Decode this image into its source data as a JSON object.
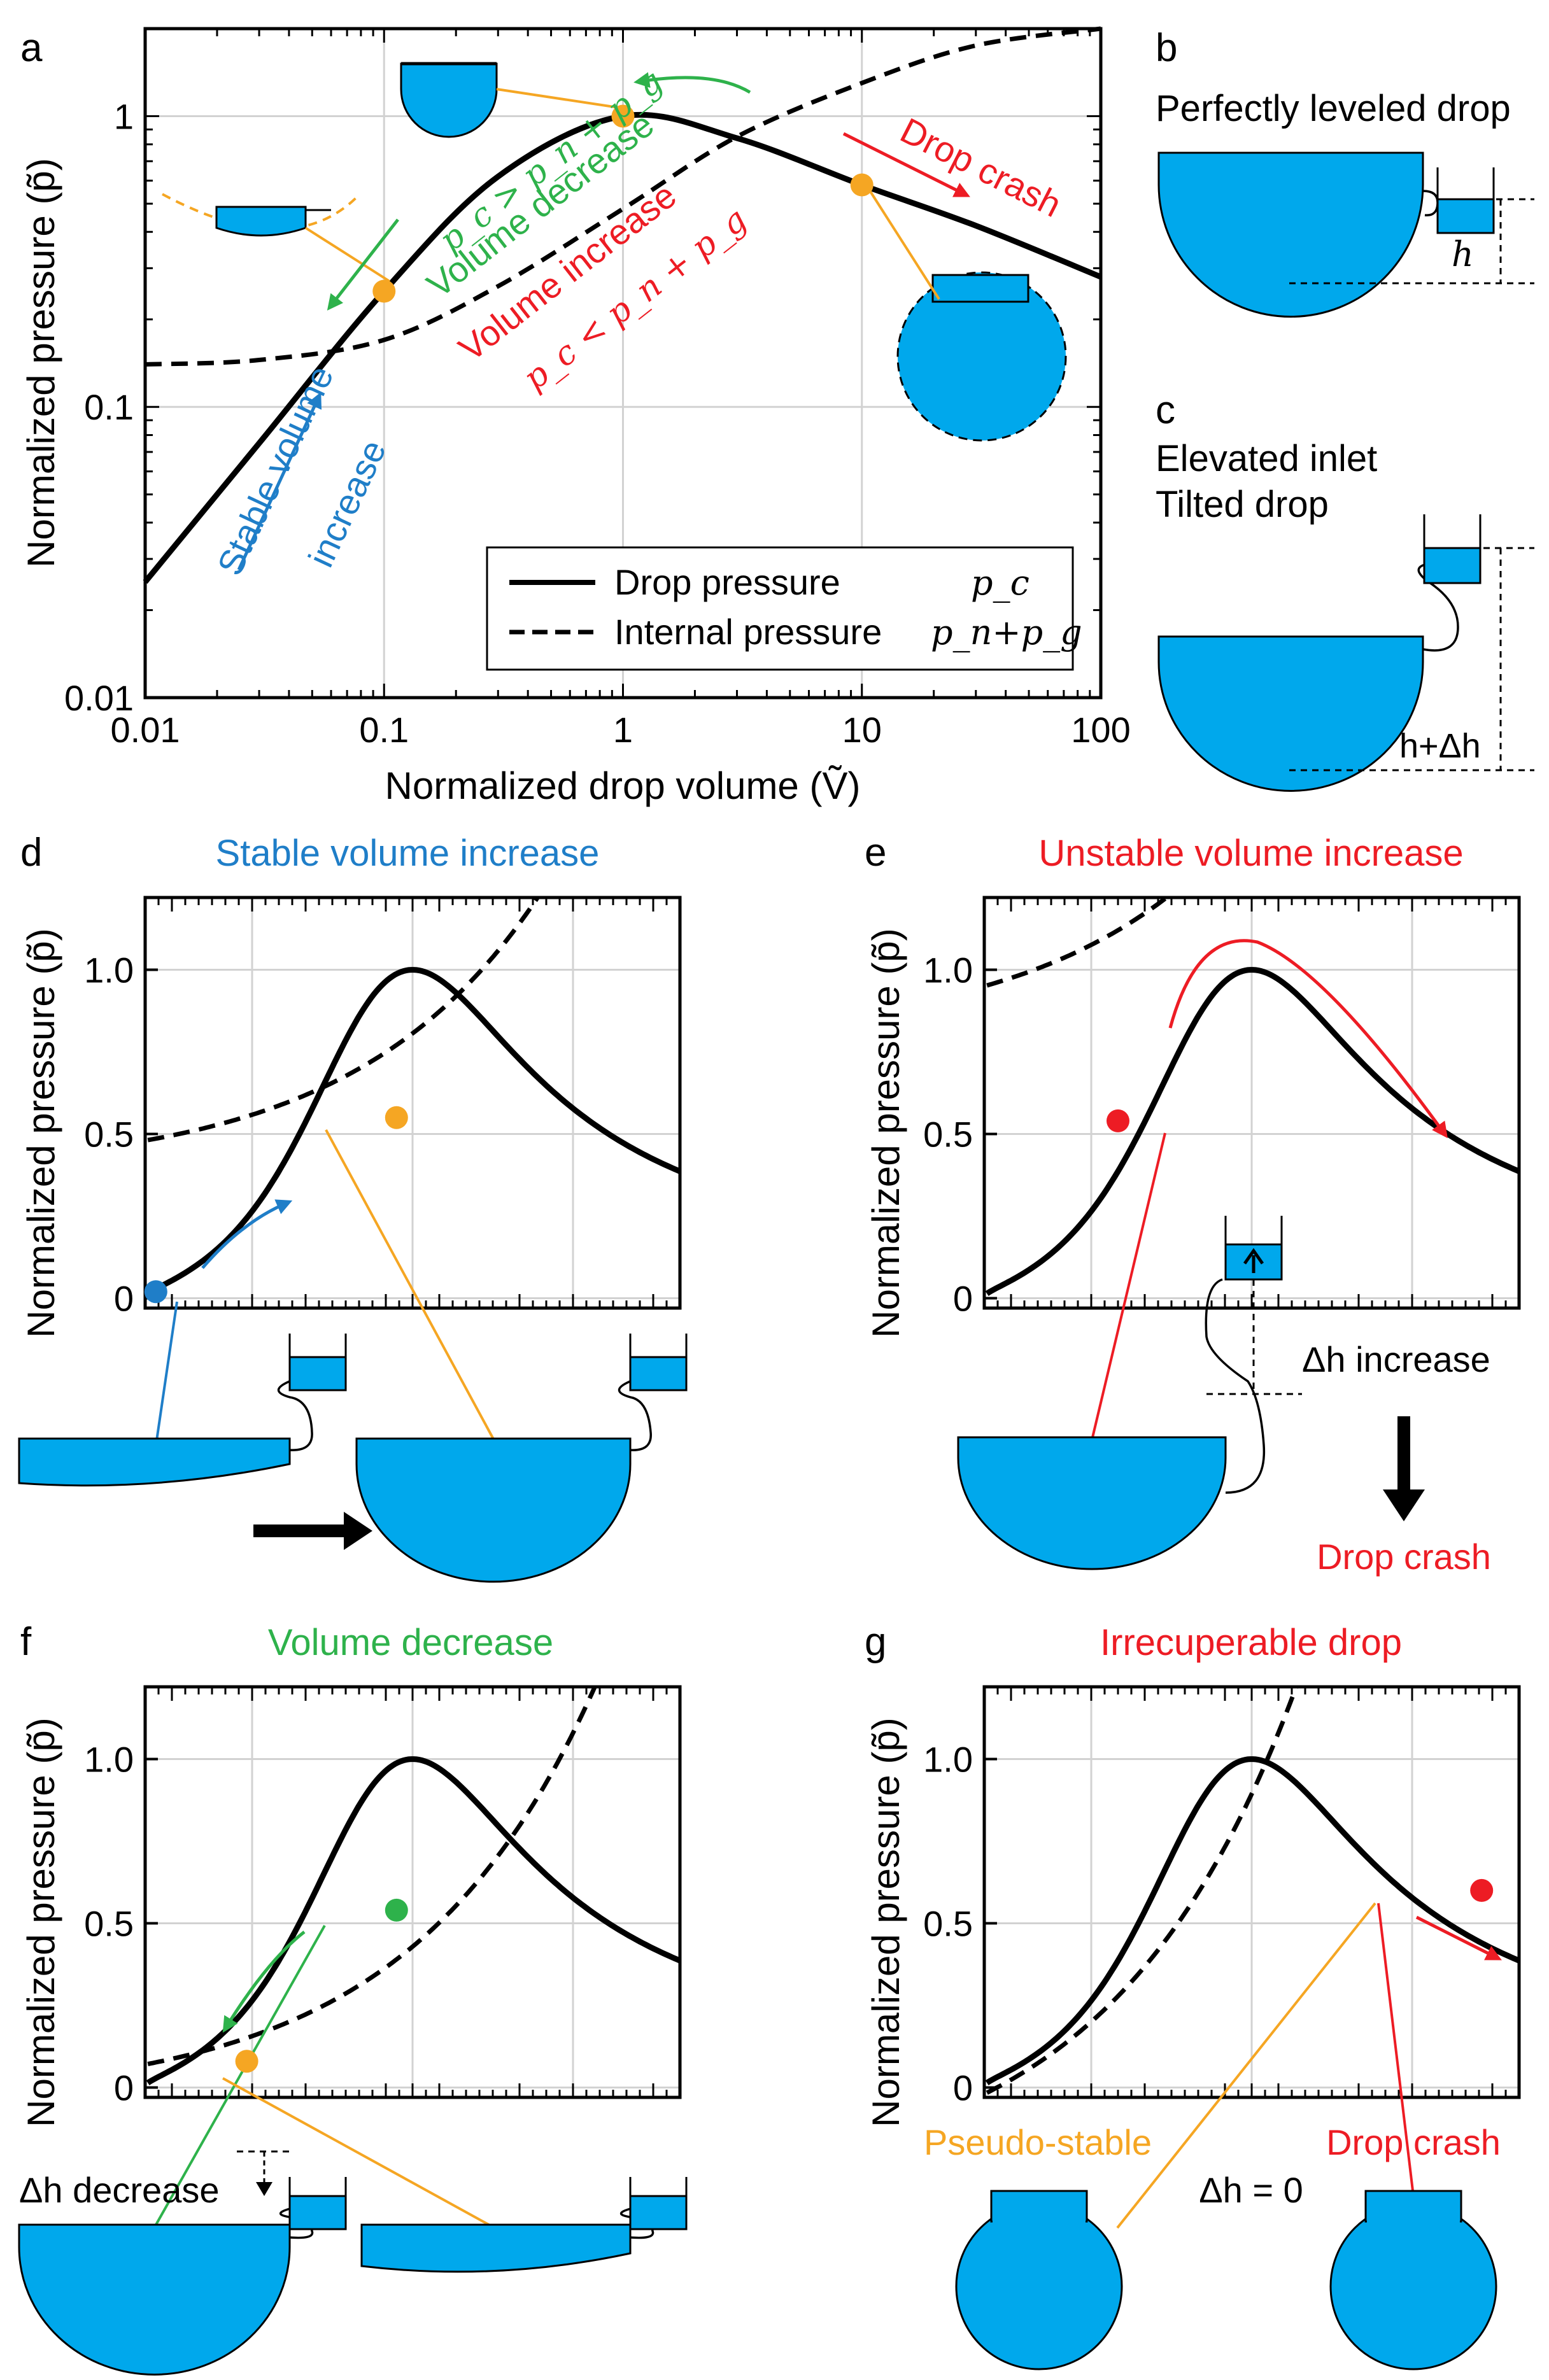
{
  "colors": {
    "blue": "#1f7ec8",
    "orange": "#f5a623",
    "green": "#2eb24b",
    "red": "#ed1c24",
    "water": "#00A8EC",
    "line": "#000000",
    "grid": "#d2d2d2"
  },
  "panels": {
    "a": {
      "letter": "a",
      "xlabel": "Normalized drop volume (Ṽ)",
      "ylabel": "Normalized pressure (p̃)",
      "annot_volume_decrease": "Volume decrease",
      "annot_volume_increase": "Volume increase",
      "annot_stable": "Stable volume",
      "annot_stable2": "increase",
      "annot_crash": "Drop crash",
      "ineq_decrease": "p_c > p_n + p_g",
      "ineq_increase": "p_c < p_n + p_g"
    },
    "b": {
      "letter": "b",
      "title": "Perfectly leveled drop",
      "h_label": "h"
    },
    "c": {
      "letter": "c",
      "title1": "Elevated inlet",
      "title2": "Tilted drop",
      "h_label": "h+Δh"
    },
    "d": {
      "letter": "d",
      "title": "Stable volume increase",
      "ylabel": "Normalized pressure (p̃)"
    },
    "e": {
      "letter": "e",
      "title": "Unstable volume increase",
      "ylabel": "Normalized pressure (p̃)",
      "dh_label": "Δh increase",
      "crash_label": "Drop crash"
    },
    "f": {
      "letter": "f",
      "title": "Volume decrease",
      "ylabel": "Normalized pressure (p̃)",
      "dh_label": "Δh decrease"
    },
    "g": {
      "letter": "g",
      "title": "Irrecuperable drop",
      "ylabel": "Normalized pressure (p̃)",
      "pseudo_label": "Pseudo-stable",
      "crash_label": "Drop crash",
      "dh_label": "Δh = 0"
    }
  },
  "chart_data": [
    {
      "id": "a",
      "type": "line",
      "scale": "log-log",
      "xlim": [
        0.01,
        100
      ],
      "ylim": [
        0.01,
        2
      ],
      "xticks": [
        0.01,
        0.1,
        1,
        10,
        100
      ],
      "xtick_labels": [
        "0.01",
        "0.1",
        "1",
        "10",
        "100"
      ],
      "yticks": [
        0.01,
        0.1,
        1
      ],
      "ytick_labels": [
        "0.01",
        "0.1",
        "1"
      ],
      "legend": {
        "placement": "bottom-right",
        "entries": [
          {
            "label": "Drop pressure",
            "symbol": "p_c",
            "style": "solid"
          },
          {
            "label": "Internal pressure",
            "symbol": "p_n+p_g",
            "style": "dashed"
          }
        ]
      },
      "series": [
        {
          "name": "Drop pressure",
          "style": "solid",
          "x": [
            0.01,
            0.03,
            0.1,
            0.3,
            1,
            3,
            10,
            30,
            100
          ],
          "y": [
            0.025,
            0.075,
            0.25,
            0.62,
            1.0,
            0.84,
            0.58,
            0.42,
            0.28
          ]
        },
        {
          "name": "Internal pressure",
          "style": "dashed",
          "x": [
            0.01,
            0.03,
            0.1,
            0.3,
            1,
            3,
            10,
            30,
            100
          ],
          "y": [
            0.14,
            0.145,
            0.17,
            0.26,
            0.48,
            0.85,
            1.3,
            1.75,
            2.0
          ]
        }
      ],
      "markers": [
        {
          "x": 0.1,
          "y": 0.25
        },
        {
          "x": 1,
          "y": 1.0
        },
        {
          "x": 10,
          "y": 0.58
        }
      ]
    },
    {
      "id": "d",
      "type": "line",
      "ylim": [
        0,
        1.2
      ],
      "yticks": [
        0,
        0.5,
        1.0
      ],
      "ytick_labels": [
        "0",
        "0.5",
        "1.0"
      ],
      "series": [
        {
          "name": "Drop pressure",
          "style": "solid"
        },
        {
          "name": "Internal pressure",
          "style": "dashed",
          "offset": 0.48,
          "gain": 0.1
        }
      ],
      "markers": [
        {
          "color": "blue",
          "x": 0.02,
          "y": 0.02
        },
        {
          "color": "orange",
          "x": 0.47,
          "y": 0.55
        }
      ]
    },
    {
      "id": "e",
      "type": "line",
      "ylim": [
        0,
        1.2
      ],
      "yticks": [
        0,
        0.5,
        1.0
      ],
      "ytick_labels": [
        "0",
        "0.5",
        "1.0"
      ],
      "series": [
        {
          "name": "Drop pressure",
          "style": "solid"
        },
        {
          "name": "Internal pressure",
          "style": "dashed",
          "offset": 0.95,
          "gain": 0.16
        }
      ],
      "markers": [
        {
          "color": "red",
          "x": 0.25,
          "y": 0.54
        }
      ]
    },
    {
      "id": "f",
      "type": "line",
      "ylim": [
        0,
        1.2
      ],
      "yticks": [
        0,
        0.5,
        1.0
      ],
      "ytick_labels": [
        "0",
        "0.5",
        "1.0"
      ],
      "series": [
        {
          "name": "Drop pressure",
          "style": "solid"
        },
        {
          "name": "Internal pressure",
          "style": "dashed",
          "offset": 0.07,
          "gain": 0.11
        }
      ],
      "markers": [
        {
          "color": "green",
          "x": 0.47,
          "y": 0.54
        },
        {
          "color": "orange",
          "x": 0.19,
          "y": 0.08
        }
      ]
    },
    {
      "id": "g",
      "type": "line",
      "ylim": [
        0,
        1.2
      ],
      "yticks": [
        0,
        0.5,
        1.0
      ],
      "ytick_labels": [
        "0",
        "0.5",
        "1.0"
      ],
      "series": [
        {
          "name": "Drop pressure",
          "style": "solid"
        },
        {
          "name": "Internal pressure",
          "style": "dashed",
          "offset": -0.02,
          "gain": 0.28
        }
      ],
      "markers": [
        {
          "color": "red",
          "x": 0.93,
          "y": 0.6
        }
      ]
    }
  ]
}
